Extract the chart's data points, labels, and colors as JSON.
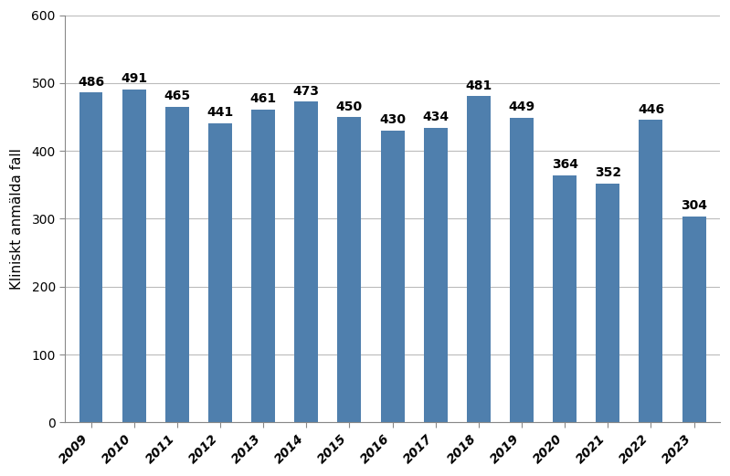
{
  "years": [
    2009,
    2010,
    2011,
    2012,
    2013,
    2014,
    2015,
    2016,
    2017,
    2018,
    2019,
    2020,
    2021,
    2022,
    2023
  ],
  "values": [
    486,
    491,
    465,
    441,
    461,
    473,
    450,
    430,
    434,
    481,
    449,
    364,
    352,
    446,
    304
  ],
  "bar_color": "#4f7fad",
  "ylabel": "Kliniskt anmälda fall",
  "ylim": [
    0,
    600
  ],
  "yticks": [
    0,
    100,
    200,
    300,
    400,
    500,
    600
  ],
  "background_color": "#ffffff",
  "grid_color": "#bbbbbb",
  "label_fontsize": 11,
  "tick_fontsize": 10,
  "value_fontsize": 10,
  "bar_width": 0.55,
  "figsize": [
    7.99,
    5.21
  ],
  "dpi": 100
}
